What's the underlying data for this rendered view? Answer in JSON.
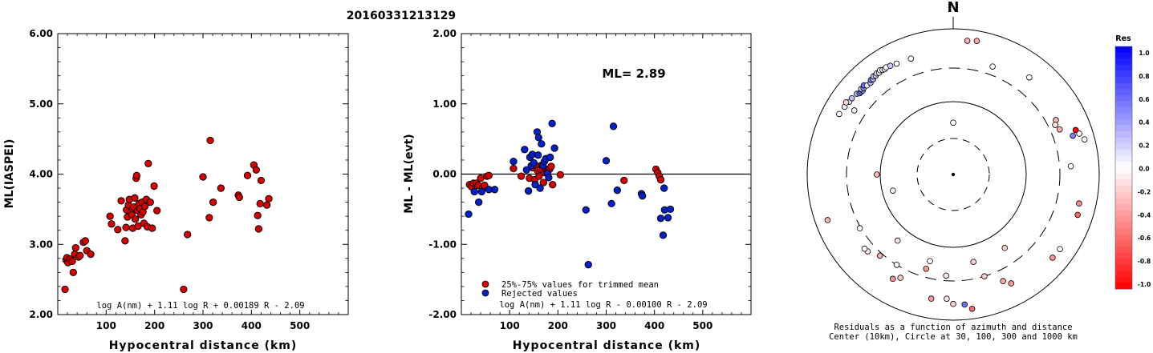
{
  "figure": {
    "title": "20160331213129"
  },
  "chart_data": [
    {
      "type": "scatter",
      "id": "ml-vs-distance",
      "xlabel": "Hypocentral distance (km)",
      "ylabel": "ML(IASPEI)",
      "xlim": [
        0,
        600
      ],
      "ylim": [
        2.0,
        6.0
      ],
      "x_ticks": [
        100,
        200,
        300,
        400,
        500
      ],
      "y_ticks": [
        "2.00",
        "3.00",
        "4.00",
        "5.00",
        "6.00"
      ],
      "formula": "log A(nm) + 1.11 log R + 0.00189 R - 2.09",
      "colors": {
        "point": "#d40000"
      },
      "points": [
        [
          15,
          2.36
        ],
        [
          17,
          2.78
        ],
        [
          19,
          2.81
        ],
        [
          21,
          2.74
        ],
        [
          25,
          2.79
        ],
        [
          30,
          2.76
        ],
        [
          32,
          2.6
        ],
        [
          35,
          2.86
        ],
        [
          37,
          2.95
        ],
        [
          43,
          2.82
        ],
        [
          46,
          2.84
        ],
        [
          53,
          3.03
        ],
        [
          57,
          3.05
        ],
        [
          60,
          2.91
        ],
        [
          68,
          2.86
        ],
        [
          108,
          3.4
        ],
        [
          111,
          3.29
        ],
        [
          124,
          3.21
        ],
        [
          131,
          3.62
        ],
        [
          139,
          3.05
        ],
        [
          141,
          3.24
        ],
        [
          142,
          3.49
        ],
        [
          144,
          3.39
        ],
        [
          146,
          3.56
        ],
        [
          148,
          3.64
        ],
        [
          151,
          3.45
        ],
        [
          153,
          3.42
        ],
        [
          155,
          3.23
        ],
        [
          157,
          3.53
        ],
        [
          159,
          3.66
        ],
        [
          160,
          3.36
        ],
        [
          162,
          3.94
        ],
        [
          163,
          3.98
        ],
        [
          165,
          3.48
        ],
        [
          166,
          3.26
        ],
        [
          168,
          3.58
        ],
        [
          170,
          3.51
        ],
        [
          172,
          3.42
        ],
        [
          174,
          3.6
        ],
        [
          176,
          3.46
        ],
        [
          178,
          3.3
        ],
        [
          180,
          3.54
        ],
        [
          183,
          3.64
        ],
        [
          185,
          3.25
        ],
        [
          187,
          4.15
        ],
        [
          191,
          3.6
        ],
        [
          195,
          3.23
        ],
        [
          199,
          3.83
        ],
        [
          205,
          3.48
        ],
        [
          260,
          2.36
        ],
        [
          268,
          3.14
        ],
        [
          300,
          3.96
        ],
        [
          313,
          3.38
        ],
        [
          315,
          4.48
        ],
        [
          321,
          3.6
        ],
        [
          337,
          3.8
        ],
        [
          373,
          3.7
        ],
        [
          375,
          3.67
        ],
        [
          392,
          3.98
        ],
        [
          405,
          4.13
        ],
        [
          410,
          4.06
        ],
        [
          413,
          3.41
        ],
        [
          415,
          3.22
        ],
        [
          418,
          3.58
        ],
        [
          420,
          3.91
        ],
        [
          432,
          3.56
        ],
        [
          436,
          3.65
        ]
      ]
    },
    {
      "type": "scatter",
      "id": "residual-vs-distance",
      "xlabel": "Hypocentral distance (km)",
      "ylabel": "ML - ML(evt)",
      "xlim": [
        0,
        600
      ],
      "ylim": [
        -2.0,
        2.0
      ],
      "x_ticks": [
        100,
        200,
        300,
        400,
        500
      ],
      "y_ticks": [
        "-2.00",
        "-1.00",
        "0.00",
        "1.00",
        "2.00"
      ],
      "annotation": "ML= 2.89",
      "formula": "log A(nm) + 1.11 log R - 0.00100 R - 2.09",
      "legend": [
        {
          "label": "25%-75% values for trimmed mean",
          "color": "#d40000"
        },
        {
          "label": "Rejected values",
          "color": "#0020c8"
        }
      ],
      "series": [
        {
          "name": "25%-75% values for trimmed mean",
          "points": [
            [
              17,
              -0.15
            ],
            [
              21,
              -0.18
            ],
            [
              25,
              -0.13
            ],
            [
              31,
              -0.13
            ],
            [
              35,
              -0.16
            ],
            [
              40,
              -0.06
            ],
            [
              44,
              -0.2
            ],
            [
              48,
              -0.16
            ],
            [
              53,
              -0.03
            ],
            [
              57,
              -0.02
            ],
            [
              108,
              0.08
            ],
            [
              124,
              -0.03
            ],
            [
              141,
              -0.06
            ],
            [
              148,
              0.09
            ],
            [
              152,
              -0.08
            ],
            [
              155,
              0.12
            ],
            [
              158,
              0.05
            ],
            [
              161,
              -0.03
            ],
            [
              164,
              0.07
            ],
            [
              167,
              0.13
            ],
            [
              170,
              -0.12
            ],
            [
              173,
              0.02
            ],
            [
              176,
              0.07
            ],
            [
              179,
              0.04
            ],
            [
              183,
              0.07
            ],
            [
              186,
              0.11
            ],
            [
              189,
              -0.15
            ],
            [
              205,
              -0.01
            ],
            [
              337,
              -0.09
            ],
            [
              403,
              0.07
            ],
            [
              407,
              0.02
            ],
            [
              410,
              -0.03
            ],
            [
              413,
              -0.08
            ]
          ]
        },
        {
          "name": "Rejected values",
          "points": [
            [
              15,
              -0.57
            ],
            [
              27,
              -0.25
            ],
            [
              36,
              -0.4
            ],
            [
              42,
              -0.25
            ],
            [
              57,
              -0.22
            ],
            [
              69,
              -0.22
            ],
            [
              108,
              0.18
            ],
            [
              131,
              0.35
            ],
            [
              135,
              0.06
            ],
            [
              139,
              -0.24
            ],
            [
              142,
              0.24
            ],
            [
              145,
              0.12
            ],
            [
              147,
              0.28
            ],
            [
              150,
              0.16
            ],
            [
              153,
              -0.15
            ],
            [
              157,
              0.6
            ],
            [
              159,
              0.27
            ],
            [
              160,
              0.52
            ],
            [
              163,
              -0.2
            ],
            [
              166,
              0.43
            ],
            [
              169,
              0.12
            ],
            [
              172,
              0.18
            ],
            [
              175,
              0.22
            ],
            [
              178,
              0.01
            ],
            [
              181,
              -0.05
            ],
            [
              184,
              0.24
            ],
            [
              188,
              0.72
            ],
            [
              193,
              0.37
            ],
            [
              258,
              -0.51
            ],
            [
              263,
              -1.29
            ],
            [
              300,
              0.19
            ],
            [
              311,
              -0.42
            ],
            [
              315,
              0.68
            ],
            [
              323,
              -0.23
            ],
            [
              373,
              -0.28
            ],
            [
              375,
              -0.31
            ],
            [
              413,
              -0.63
            ],
            [
              418,
              -0.87
            ],
            [
              420,
              -0.2
            ],
            [
              421,
              -0.51
            ],
            [
              428,
              -0.62
            ],
            [
              433,
              -0.5
            ]
          ]
        }
      ]
    },
    {
      "type": "scatter",
      "id": "azimuth-residual-map",
      "north_label": "N",
      "caption_line1": "Residuals as a function of azimuth and distance",
      "caption_line2": "Center (10km), Circle at 30, 100, 300 and 1000 km",
      "rings_km": [
        30,
        100,
        300,
        1000
      ],
      "legend_title": "Res",
      "legend_ticks": [
        "1.0",
        "0.8",
        "0.6",
        "0.4",
        "0.2",
        "0.0",
        "-0.2",
        "-0.4",
        "-0.6",
        "-0.8",
        "-1.0"
      ],
      "colorscale": {
        "positive": "#0000ff",
        "zero": "#ffffff",
        "negative": "#ff0000"
      },
      "stations_note": "each station: [azimuth_deg, distance_km, residual]",
      "stations": [
        [
          298,
          700,
          0.0
        ],
        [
          302,
          680,
          0.05
        ],
        [
          305,
          660,
          -0.05
        ],
        [
          304,
          700,
          -0.15
        ],
        [
          307,
          660,
          0.25
        ],
        [
          310,
          640,
          0.3
        ],
        [
          311,
          610,
          0.5
        ],
        [
          312,
          605,
          0.6
        ],
        [
          313,
          600,
          0.4
        ],
        [
          313,
          640,
          0.2
        ],
        [
          314,
          620,
          0.45
        ],
        [
          315,
          650,
          0.55
        ],
        [
          316,
          610,
          0.1
        ],
        [
          318,
          600,
          0.25
        ],
        [
          319,
          635,
          0.5
        ],
        [
          320,
          620,
          0.35
        ],
        [
          321,
          655,
          0.2
        ],
        [
          322,
          640,
          0.15
        ],
        [
          323,
          660,
          0.1
        ],
        [
          324,
          645,
          0.05
        ],
        [
          325,
          670,
          0.0
        ],
        [
          326,
          650,
          0.1
        ],
        [
          327,
          640,
          0.05
        ],
        [
          328,
          655,
          0.0
        ],
        [
          330,
          640,
          0.2
        ],
        [
          333,
          620,
          0.0
        ],
        [
          303,
          500,
          0.0
        ],
        [
          6,
          800,
          -0.3
        ],
        [
          10,
          820,
          -0.35
        ],
        [
          20,
          450,
          0.0
        ],
        [
          38,
          600,
          0.0
        ],
        [
          70,
          720,
          -1.0
        ],
        [
          72,
          640,
          0.5
        ],
        [
          72,
          760,
          0.0
        ],
        [
          75,
          820,
          0.0
        ],
        [
          62,
          470,
          -0.3
        ],
        [
          64,
          420,
          -0.1
        ],
        [
          67,
          460,
          -0.3
        ],
        [
          86,
          500,
          0.0
        ],
        [
          103,
          700,
          -0.45
        ],
        [
          108,
          730,
          -0.6
        ],
        [
          125,
          720,
          0.0
        ],
        [
          130,
          710,
          -0.4
        ],
        [
          152,
          600,
          -0.4
        ],
        [
          155,
          500,
          -0.35
        ],
        [
          163,
          300,
          -0.2
        ],
        [
          167,
          200,
          -0.2
        ],
        [
          172,
          820,
          -0.6
        ],
        [
          175,
          730,
          0.55
        ],
        [
          180,
          710,
          -0.2
        ],
        [
          183,
          620,
          -0.1
        ],
        [
          190,
          650,
          -0.4
        ],
        [
          210,
          550,
          -0.4
        ],
        [
          212,
          300,
          0.0
        ],
        [
          222,
          350,
          -0.3
        ],
        [
          228,
          450,
          -0.1
        ],
        [
          230,
          460,
          0.0
        ],
        [
          240,
          320,
          0.0
        ],
        [
          250,
          780,
          -0.3
        ],
        [
          207,
          470,
          -0.2
        ],
        [
          196,
          250,
          -0.4
        ],
        [
          195,
          200,
          0.0
        ],
        [
          184,
          270,
          -0.1
        ],
        [
          145,
          200,
          -0.2
        ],
        [
          220,
          180,
          -0.1
        ],
        [
          270,
          120,
          -0.3
        ],
        [
          255,
          80,
          0.0
        ],
        [
          340,
          600,
          0.0
        ],
        [
          0,
          60,
          0.0
        ]
      ]
    }
  ]
}
